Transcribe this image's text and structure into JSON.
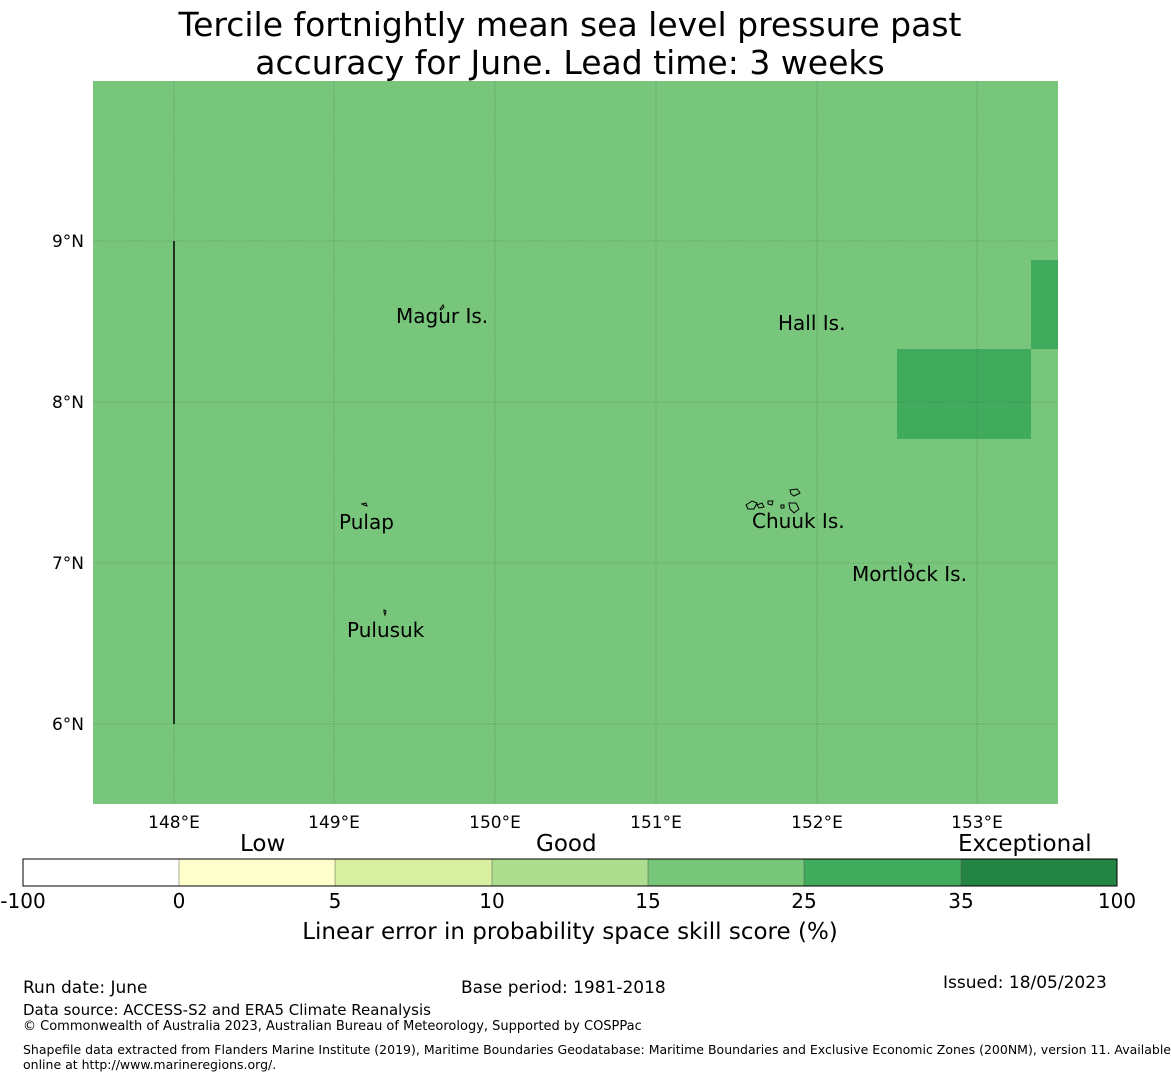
{
  "title_line1": "Tercile fortnightly mean sea level pressure past",
  "title_line2": "accuracy for June. Lead time: 3 weeks",
  "map": {
    "background_color": "#78c67b",
    "high_skill_color": "#41ab5d",
    "lon_ticks": [
      "148°E",
      "149°E",
      "150°E",
      "151°E",
      "152°E",
      "153°E"
    ],
    "lat_ticks": [
      "9°N",
      "8°N",
      "7°N",
      "6°N"
    ],
    "places": [
      {
        "name": "Magur Is."
      },
      {
        "name": "Hall Is."
      },
      {
        "name": "Pulap"
      },
      {
        "name": "Chuuk Is."
      },
      {
        "name": "Mortlock Is."
      },
      {
        "name": "Pulusuk"
      }
    ]
  },
  "colorbar": {
    "categories": [
      "Low",
      "Good",
      "Exceptional"
    ],
    "colors": [
      "#ffffff",
      "#ffffcc",
      "#d9f0a3",
      "#addd8e",
      "#78c679",
      "#41ab5d",
      "#238443"
    ],
    "ticks": [
      "-100",
      "0",
      "5",
      "10",
      "15",
      "25",
      "35",
      "100"
    ],
    "label": "Linear error in probability space skill score (%)"
  },
  "footer": {
    "run_date": "Run date: June",
    "base_period": "Base period: 1981-2018",
    "issued": "Issued: 18/05/2023",
    "data_source": "Data source: ACCESS-S2 and ERA5 Climate Reanalysis",
    "copyright": "© Commonwealth of Australia 2023, Australian Bureau of Meteorology, Supported by COSPPac",
    "shapefile_line1": "Shapefile data extracted from Flanders Marine Institute (2019), Maritime Boundaries Geodatabase: Maritime Boundaries and Exclusive Economic Zones (200NM), version 11. Available",
    "shapefile_line2": "online at http://www.marineregions.org/."
  }
}
